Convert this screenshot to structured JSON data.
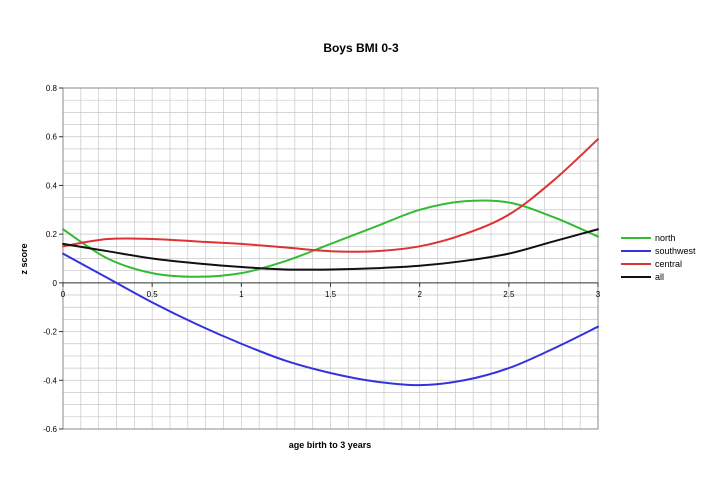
{
  "chart_data": {
    "type": "line",
    "title": "Boys BMI 0-3",
    "xlabel": "age birth to 3 years",
    "ylabel": "z score",
    "xlim": [
      0,
      3
    ],
    "ylim": [
      -0.6,
      0.8
    ],
    "xticks": [
      0,
      0.5,
      1,
      1.5,
      2,
      2.5,
      3
    ],
    "xtick_labels": [
      "0",
      "0.5",
      "1",
      "1.5",
      "2",
      "2.5",
      "3"
    ],
    "yticks": [
      -0.6,
      -0.4,
      -0.2,
      0,
      0.2,
      0.4,
      0.6,
      0.8
    ],
    "ytick_labels": [
      "-0.6",
      "-0.4",
      "-0.2",
      "0",
      "0.2",
      "0.4",
      "0.6",
      "0.8"
    ],
    "grid": true,
    "legend_position": "right",
    "series": [
      {
        "name": "north",
        "color": "#33bb33",
        "x": [
          0,
          0.25,
          0.5,
          0.75,
          1.0,
          1.25,
          1.5,
          1.75,
          2.0,
          2.25,
          2.5,
          2.75,
          3.0
        ],
        "y": [
          0.22,
          0.1,
          0.04,
          0.025,
          0.04,
          0.09,
          0.16,
          0.23,
          0.3,
          0.335,
          0.33,
          0.27,
          0.19
        ]
      },
      {
        "name": "southwest",
        "color": "#3333dd",
        "x": [
          0,
          0.25,
          0.5,
          0.75,
          1.0,
          1.25,
          1.5,
          1.75,
          2.0,
          2.25,
          2.5,
          2.75,
          3.0
        ],
        "y": [
          0.12,
          0.02,
          -0.08,
          -0.17,
          -0.25,
          -0.32,
          -0.37,
          -0.405,
          -0.42,
          -0.4,
          -0.35,
          -0.27,
          -0.18
        ]
      },
      {
        "name": "central",
        "color": "#dd3333",
        "x": [
          0,
          0.25,
          0.5,
          0.75,
          1.0,
          1.25,
          1.5,
          1.75,
          2.0,
          2.25,
          2.5,
          2.75,
          3.0
        ],
        "y": [
          0.15,
          0.18,
          0.18,
          0.17,
          0.16,
          0.145,
          0.13,
          0.13,
          0.15,
          0.2,
          0.28,
          0.42,
          0.59
        ]
      },
      {
        "name": "all",
        "color": "#111111",
        "x": [
          0,
          0.25,
          0.5,
          0.75,
          1.0,
          1.25,
          1.5,
          1.75,
          2.0,
          2.25,
          2.5,
          2.75,
          3.0
        ],
        "y": [
          0.16,
          0.13,
          0.1,
          0.08,
          0.065,
          0.055,
          0.055,
          0.06,
          0.07,
          0.09,
          0.12,
          0.17,
          0.22
        ]
      }
    ]
  }
}
